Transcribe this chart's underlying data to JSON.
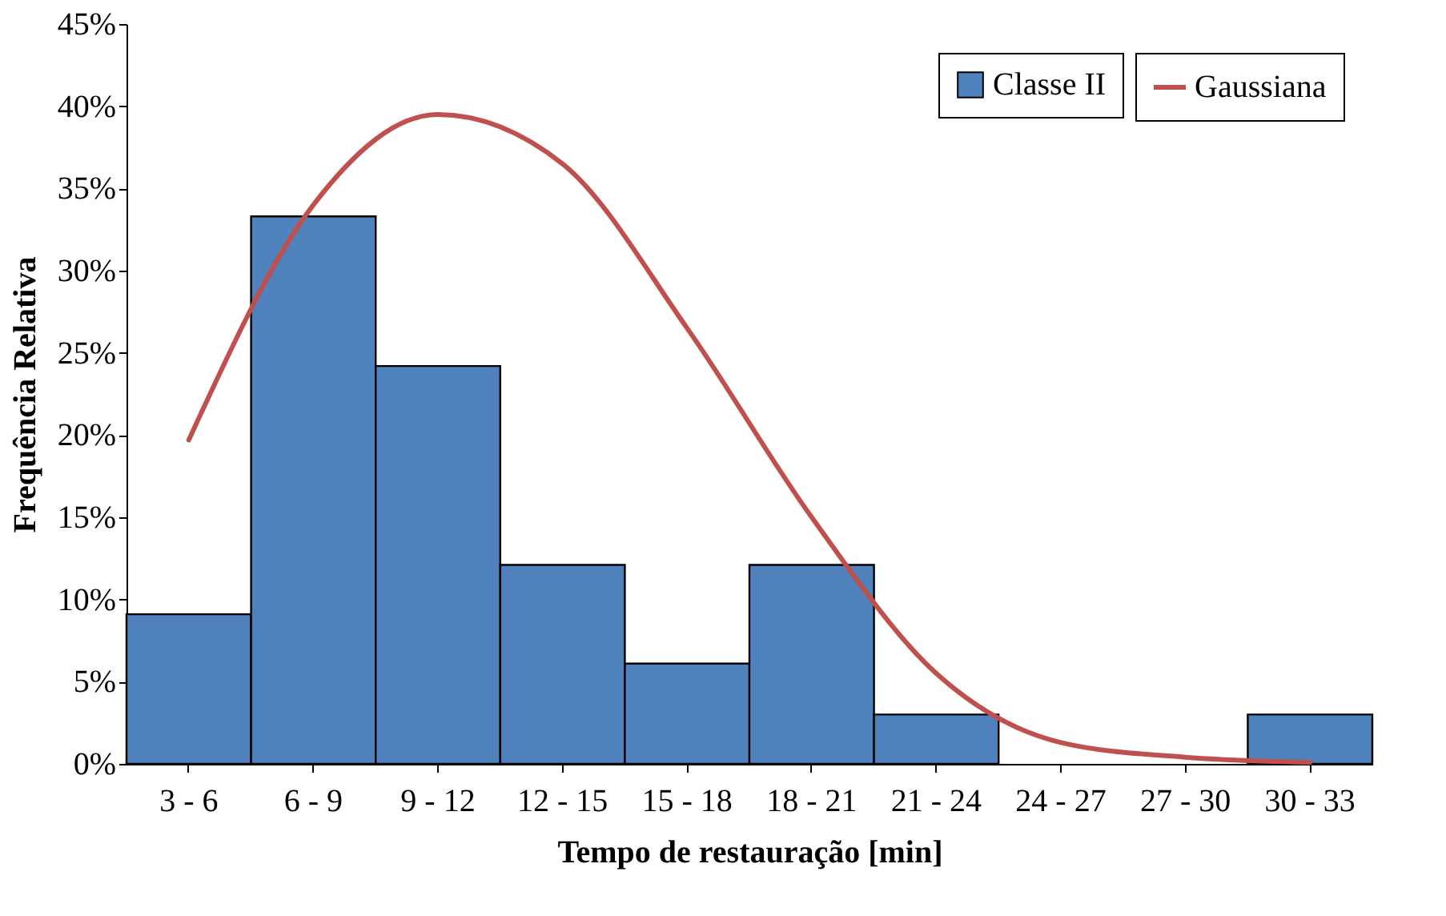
{
  "chart_data": {
    "type": "bar",
    "xlabel": "Tempo de restauração [min]",
    "ylabel": "Frequência Relativa",
    "categories": [
      "3 - 6",
      "6 - 9",
      "9 - 12",
      "12 - 15",
      "15 - 18",
      "18 - 21",
      "21 - 24",
      "24 - 27",
      "27 - 30",
      "30 - 33"
    ],
    "series": [
      {
        "name": "Classe II",
        "color": "#4f81bd",
        "values": [
          9.1,
          33.3,
          24.2,
          12.1,
          6.1,
          12.1,
          3.0,
          null,
          null,
          3.0
        ]
      },
      {
        "name": "Gaussiana",
        "type": "line",
        "color": "#c0504d",
        "values": [
          19.7,
          34,
          39.5,
          36.5,
          26.5,
          15,
          5.5,
          1.3,
          0.4,
          0.1
        ]
      }
    ],
    "ylim": [
      0,
      45
    ],
    "yticks": [
      {
        "value": 0,
        "label": "0%"
      },
      {
        "value": 5,
        "label": "5%"
      },
      {
        "value": 10,
        "label": "10%"
      },
      {
        "value": 15,
        "label": "15%"
      },
      {
        "value": 20,
        "label": "20%"
      },
      {
        "value": 25,
        "label": "25%"
      },
      {
        "value": 30,
        "label": "30%"
      },
      {
        "value": 35,
        "label": "35%"
      },
      {
        "value": 40,
        "label": "40%"
      },
      {
        "value": 45,
        "label": "45%"
      }
    ],
    "grid": false,
    "legend": "top right",
    "marker": "none",
    "line_style": "solid"
  }
}
